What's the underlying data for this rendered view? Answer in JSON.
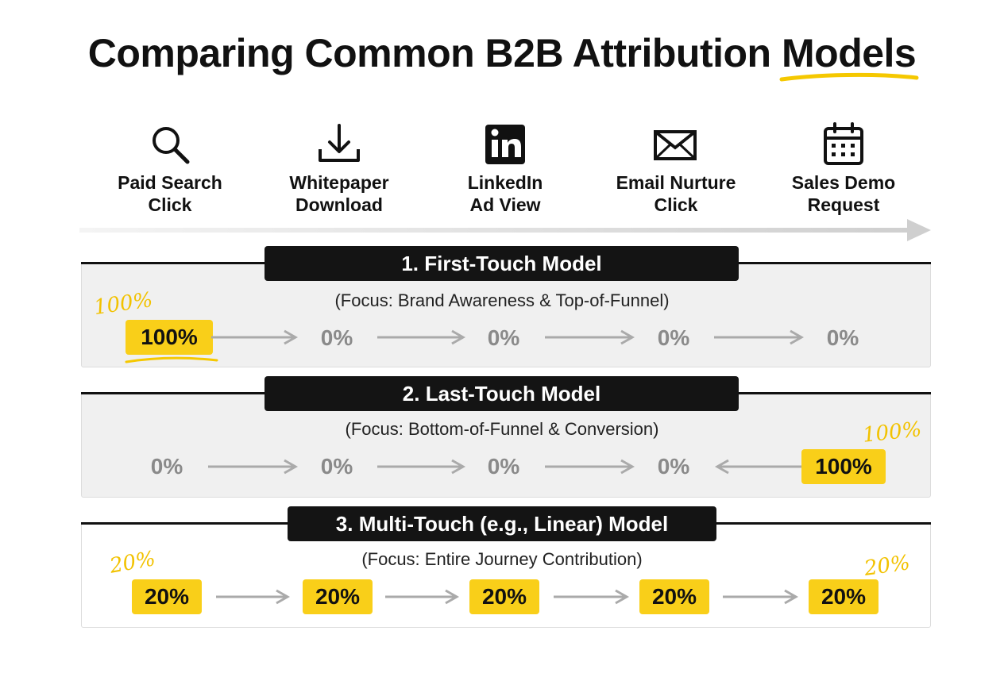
{
  "title": {
    "main": "Comparing Common B2B Attribution",
    "highlight": "Models"
  },
  "stages": [
    {
      "icon": "magnifier-icon",
      "line1": "Paid Search",
      "line2": "Click"
    },
    {
      "icon": "download-icon",
      "line1": "Whitepaper",
      "line2": "Download"
    },
    {
      "icon": "linkedin-icon",
      "line1": "LinkedIn",
      "line2": "Ad View"
    },
    {
      "icon": "envelope-icon",
      "line1": "Email Nurture",
      "line2": "Click"
    },
    {
      "icon": "calendar-icon",
      "line1": "Sales Demo",
      "line2": "Request"
    }
  ],
  "models": [
    {
      "title": "1. First-Touch Model",
      "focus": "(Focus: Brand Awareness & Top-of-Funnel)",
      "values": [
        "100%",
        "0%",
        "0%",
        "0%",
        "0%"
      ],
      "annotations": [
        "100%"
      ]
    },
    {
      "title": "2. Last-Touch Model",
      "focus": "(Focus: Bottom-of-Funnel & Conversion)",
      "values": [
        "0%",
        "0%",
        "0%",
        "0%",
        "100%"
      ],
      "annotations": [
        "100%"
      ]
    },
    {
      "title": "3. Multi-Touch (e.g., Linear) Model",
      "focus": "(Focus: Entire Journey Contribution)",
      "values": [
        "20%",
        "20%",
        "20%",
        "20%",
        "20%"
      ],
      "annotations": [
        "20%",
        "20%"
      ]
    }
  ],
  "colors": {
    "accent": "#f9cf19",
    "annotation": "#f2c200",
    "banner": "#141414",
    "muted": "#8a8a8a"
  }
}
